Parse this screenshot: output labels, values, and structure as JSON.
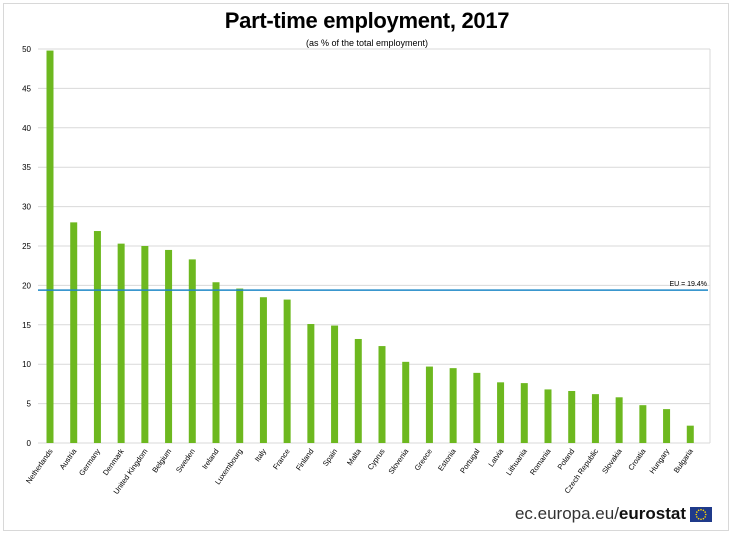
{
  "header": {
    "title": "Part-time employment, 2017",
    "subtitle": "(as % of the total employment)"
  },
  "footer": {
    "site_prefix": "ec.europa.eu/",
    "site_brand": "eurostat"
  },
  "colors": {
    "bar": "#6db81f",
    "reference_line": "#1e88c7",
    "grid": "#d9d9d9",
    "flag_blue": "#1f3a8a",
    "flag_star": "#ffd700"
  },
  "chart_data": {
    "type": "bar",
    "title": "Part-time employment, 2017",
    "subtitle": "(as % of the total employment)",
    "xlabel": "",
    "ylabel": "",
    "ylim": [
      0,
      50
    ],
    "yticks": [
      0,
      5,
      10,
      15,
      20,
      25,
      30,
      35,
      40,
      45,
      50
    ],
    "grid": true,
    "categories": [
      "Netherlands",
      "Austria",
      "Germany",
      "Denmark",
      "United Kingdom",
      "Belgium",
      "Sweden",
      "Ireland",
      "Luxembourg",
      "Italy",
      "France",
      "Finland",
      "Spain",
      "Malta",
      "Cyprus",
      "Slovenia",
      "Greece",
      "Estonia",
      "Portugal",
      "Latvia",
      "Lithuania",
      "Romania",
      "Poland",
      "Czech Republic",
      "Slovakia",
      "Croatia",
      "Hungary",
      "Bulgaria"
    ],
    "values": [
      49.8,
      28.0,
      26.9,
      25.3,
      25.0,
      24.5,
      23.3,
      20.4,
      19.6,
      18.5,
      18.2,
      15.1,
      14.9,
      13.2,
      12.3,
      10.3,
      9.7,
      9.5,
      8.9,
      7.7,
      7.6,
      6.8,
      6.6,
      6.2,
      5.8,
      4.8,
      4.3,
      2.2
    ],
    "reference_line": {
      "label": "EU = 19.4%",
      "value": 19.4
    }
  }
}
